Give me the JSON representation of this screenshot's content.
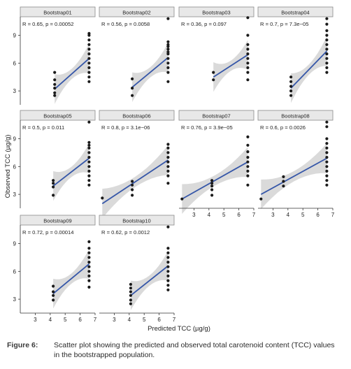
{
  "figure": {
    "label": "Figure 6:",
    "caption": "Scatter plot showing the predicted and observed total carotenoid content (TCC) values in the bootstrapped population.",
    "xlabel": "Predicted TCC (µg/g)",
    "ylabel": "Observed TCC (µg/g)"
  },
  "chart_data": {
    "type": "scatter",
    "xlim": [
      2,
      7
    ],
    "ylim": [
      1.5,
      11
    ],
    "xticks": [
      "3",
      "4",
      "5",
      "6",
      "7"
    ],
    "yticks": [
      "3",
      "6",
      "9"
    ],
    "grid": false,
    "panels": [
      {
        "title": "Bootstrap01",
        "annotation": "R = 0.65, p = 0.00052",
        "line": {
          "x": [
            4.3,
            6.6
          ],
          "y": [
            3.2,
            6.5
          ]
        },
        "points": [
          [
            4.3,
            2.5
          ],
          [
            4.3,
            2.8
          ],
          [
            4.3,
            3.3
          ],
          [
            4.3,
            3.7
          ],
          [
            4.3,
            4.2
          ],
          [
            4.3,
            5.0
          ],
          [
            6.6,
            4.0
          ],
          [
            6.6,
            4.5
          ],
          [
            6.6,
            5.0
          ],
          [
            6.6,
            5.5
          ],
          [
            6.6,
            6.0
          ],
          [
            6.6,
            6.5
          ],
          [
            6.6,
            7.0
          ],
          [
            6.6,
            7.5
          ],
          [
            6.6,
            8.0
          ],
          [
            6.6,
            8.5
          ],
          [
            6.6,
            9.0
          ],
          [
            6.6,
            9.2
          ]
        ]
      },
      {
        "title": "Bootstrap02",
        "annotation": "R = 0.56, p = 0.0058",
        "line": {
          "x": [
            4.2,
            6.6
          ],
          "y": [
            3.4,
            6.6
          ]
        },
        "points": [
          [
            4.2,
            2.5
          ],
          [
            4.2,
            3.3
          ],
          [
            4.2,
            4.3
          ],
          [
            6.6,
            4.0
          ],
          [
            6.6,
            5.0
          ],
          [
            6.6,
            5.5
          ],
          [
            6.6,
            6.0
          ],
          [
            6.6,
            6.5
          ],
          [
            6.6,
            7.0
          ],
          [
            6.6,
            7.2
          ],
          [
            6.6,
            7.5
          ],
          [
            6.6,
            7.8
          ],
          [
            6.6,
            8.0
          ],
          [
            6.6,
            8.3
          ],
          [
            6.6,
            10.8
          ]
        ]
      },
      {
        "title": "Bootstrap03",
        "annotation": "R = 0.36, p = 0.097",
        "line": {
          "x": [
            4.3,
            6.6
          ],
          "y": [
            4.5,
            6.9
          ]
        },
        "points": [
          [
            4.3,
            4.2
          ],
          [
            4.3,
            5.0
          ],
          [
            6.6,
            4.2
          ],
          [
            6.6,
            5.0
          ],
          [
            6.6,
            5.5
          ],
          [
            6.6,
            6.0
          ],
          [
            6.6,
            6.5
          ],
          [
            6.6,
            7.0
          ],
          [
            6.6,
            7.5
          ],
          [
            6.6,
            8.0
          ],
          [
            6.6,
            9.0
          ],
          [
            6.6,
            10.9
          ]
        ]
      },
      {
        "title": "Bootstrap04",
        "annotation": "R = 0.7, p = 7.3e−05",
        "line": {
          "x": [
            4.2,
            6.6
          ],
          "y": [
            3.3,
            7.3
          ]
        },
        "points": [
          [
            4.2,
            2.5
          ],
          [
            4.2,
            3.0
          ],
          [
            4.2,
            3.5
          ],
          [
            4.2,
            4.0
          ],
          [
            4.2,
            4.5
          ],
          [
            6.6,
            5.0
          ],
          [
            6.6,
            5.5
          ],
          [
            6.6,
            6.0
          ],
          [
            6.6,
            6.5
          ],
          [
            6.6,
            7.0
          ],
          [
            6.6,
            7.5
          ],
          [
            6.6,
            8.0
          ],
          [
            6.6,
            8.5
          ],
          [
            6.6,
            9.0
          ],
          [
            6.6,
            9.5
          ],
          [
            6.6,
            10.2
          ],
          [
            6.6,
            10.8
          ]
        ]
      },
      {
        "title": "Bootstrap05",
        "annotation": "R = 0.5, p = 0.011",
        "line": {
          "x": [
            4.2,
            6.6
          ],
          "y": [
            3.9,
            6.9
          ]
        },
        "points": [
          [
            4.2,
            2.9
          ],
          [
            4.2,
            3.8
          ],
          [
            4.2,
            4.2
          ],
          [
            4.2,
            4.5
          ],
          [
            6.6,
            4.0
          ],
          [
            6.6,
            4.5
          ],
          [
            6.6,
            5.0
          ],
          [
            6.6,
            5.5
          ],
          [
            6.6,
            6.0
          ],
          [
            6.6,
            6.5
          ],
          [
            6.6,
            7.0
          ],
          [
            6.6,
            7.5
          ],
          [
            6.6,
            8.0
          ],
          [
            6.6,
            8.3
          ],
          [
            6.6,
            8.6
          ],
          [
            6.6,
            10.8
          ]
        ]
      },
      {
        "title": "Bootstrap06",
        "annotation": "R = 0.8, p = 3.1e−06",
        "line": {
          "x": [
            2.2,
            6.6
          ],
          "y": [
            2.0,
            6.7
          ]
        },
        "points": [
          [
            2.2,
            2.6
          ],
          [
            4.2,
            2.9
          ],
          [
            4.2,
            3.5
          ],
          [
            4.2,
            4.0
          ],
          [
            4.2,
            4.4
          ],
          [
            6.6,
            4.2
          ],
          [
            6.6,
            5.0
          ],
          [
            6.6,
            5.5
          ],
          [
            6.6,
            6.0
          ],
          [
            6.6,
            6.5
          ],
          [
            6.6,
            7.0
          ],
          [
            6.6,
            7.5
          ],
          [
            6.6,
            8.0
          ],
          [
            6.6,
            8.4
          ]
        ]
      },
      {
        "title": "Bootstrap07",
        "annotation": "R = 0.76, p = 3.9e−05",
        "line": {
          "x": [
            2.2,
            6.6
          ],
          "y": [
            2.5,
            6.5
          ]
        },
        "points": [
          [
            2.2,
            2.5
          ],
          [
            4.2,
            2.9
          ],
          [
            4.2,
            3.5
          ],
          [
            4.2,
            3.9
          ],
          [
            4.2,
            4.2
          ],
          [
            4.2,
            4.5
          ],
          [
            6.6,
            4.0
          ],
          [
            6.6,
            5.0
          ],
          [
            6.6,
            5.5
          ],
          [
            6.6,
            6.0
          ],
          [
            6.6,
            6.5
          ],
          [
            6.6,
            7.0
          ],
          [
            6.6,
            7.6
          ],
          [
            6.6,
            8.3
          ],
          [
            6.6,
            9.2
          ]
        ]
      },
      {
        "title": "Bootstrap08",
        "annotation": "R = 0.6, p = 0.0026",
        "line": {
          "x": [
            2.2,
            6.6
          ],
          "y": [
            3.0,
            6.9
          ]
        },
        "points": [
          [
            2.2,
            2.5
          ],
          [
            3.7,
            3.9
          ],
          [
            3.7,
            4.4
          ],
          [
            3.7,
            4.9
          ],
          [
            6.6,
            4.0
          ],
          [
            6.6,
            4.5
          ],
          [
            6.6,
            5.0
          ],
          [
            6.6,
            5.5
          ],
          [
            6.6,
            6.0
          ],
          [
            6.6,
            6.5
          ],
          [
            6.6,
            7.0
          ],
          [
            6.6,
            7.5
          ],
          [
            6.6,
            8.0
          ],
          [
            6.6,
            8.5
          ],
          [
            6.6,
            9.0
          ],
          [
            6.6,
            10.3
          ],
          [
            6.6,
            10.8
          ]
        ]
      },
      {
        "title": "Bootstrap09",
        "annotation": "R = 0.72, p = 0.00014",
        "line": {
          "x": [
            4.2,
            6.6
          ],
          "y": [
            3.6,
            6.8
          ]
        },
        "points": [
          [
            4.2,
            2.9
          ],
          [
            4.2,
            3.4
          ],
          [
            4.2,
            3.8
          ],
          [
            4.2,
            4.4
          ],
          [
            6.6,
            4.3
          ],
          [
            6.6,
            5.0
          ],
          [
            6.6,
            5.5
          ],
          [
            6.6,
            6.0
          ],
          [
            6.6,
            6.5
          ],
          [
            6.6,
            7.0
          ],
          [
            6.6,
            7.5
          ],
          [
            6.6,
            8.0
          ],
          [
            6.6,
            8.5
          ],
          [
            6.6,
            9.2
          ]
        ]
      },
      {
        "title": "Bootstrap10",
        "annotation": "R = 0.62, p = 0.0012",
        "line": {
          "x": [
            4.1,
            6.6
          ],
          "y": [
            3.4,
            6.6
          ]
        },
        "points": [
          [
            4.1,
            2.5
          ],
          [
            4.1,
            2.9
          ],
          [
            4.1,
            3.4
          ],
          [
            4.1,
            3.8
          ],
          [
            4.1,
            4.2
          ],
          [
            4.1,
            4.6
          ],
          [
            6.6,
            4.0
          ],
          [
            6.6,
            4.5
          ],
          [
            6.6,
            5.0
          ],
          [
            6.6,
            5.5
          ],
          [
            6.6,
            6.0
          ],
          [
            6.6,
            6.5
          ],
          [
            6.6,
            7.0
          ],
          [
            6.6,
            7.5
          ],
          [
            6.6,
            8.0
          ],
          [
            6.6,
            8.5
          ],
          [
            6.6,
            10.8
          ]
        ]
      }
    ]
  },
  "colors": {
    "strip_fill": "#e8e8e8",
    "strip_border": "#8a8a8a",
    "ci_band": "#d3d3d3",
    "regression_line": "#3556a8",
    "points": "#1a1a1a",
    "axis": "#333333",
    "text": "#222222"
  }
}
